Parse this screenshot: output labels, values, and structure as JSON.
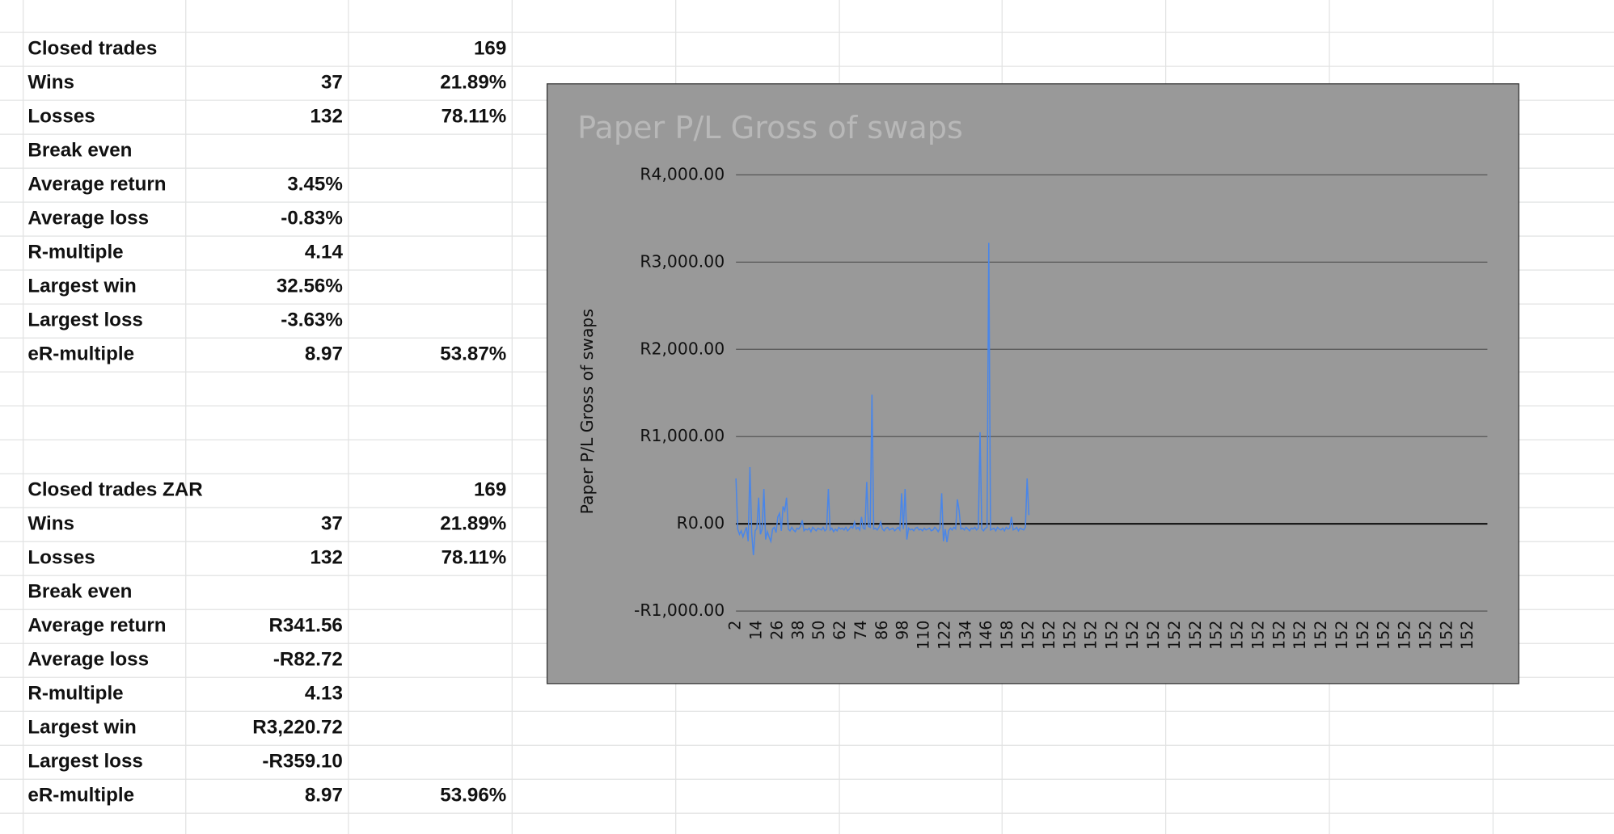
{
  "tables": [
    {
      "rows": [
        [
          "Closed trades",
          null,
          "169"
        ],
        [
          "Wins",
          "37",
          "21.89%"
        ],
        [
          "Losses",
          "132",
          "78.11%"
        ],
        [
          "Break even",
          null,
          null
        ],
        [
          "Average return",
          "3.45%",
          null
        ],
        [
          "Average loss",
          "-0.83%",
          null
        ],
        [
          "R-multiple",
          "4.14",
          null
        ],
        [
          "Largest win",
          "32.56%",
          null
        ],
        [
          "Largest loss",
          "-3.63%",
          null
        ],
        [
          "eR-multiple",
          "8.97",
          "53.87%"
        ]
      ]
    },
    {
      "rows": [
        [
          "Closed trades ZAR",
          null,
          "169"
        ],
        [
          "Wins",
          "37",
          "21.89%"
        ],
        [
          "Losses",
          "132",
          "78.11%"
        ],
        [
          "Break even",
          null,
          null
        ],
        [
          "Average return",
          "R341.56",
          null
        ],
        [
          "Average loss",
          "-R82.72",
          null
        ],
        [
          "R-multiple",
          "4.13",
          null
        ],
        [
          "Largest win",
          "R3,220.72",
          null
        ],
        [
          "Largest loss",
          "-R359.10",
          null
        ],
        [
          "eR-multiple",
          "8.97",
          "53.96%"
        ]
      ]
    }
  ],
  "chart_data": {
    "type": "line",
    "title": "Paper P/L Gross of swaps",
    "y_label": "Paper P/L Gross of swaps",
    "color": "#4a86e8",
    "grid": true,
    "ylim": [
      -1000,
      4000
    ],
    "yticks": [
      {
        "value": -1000,
        "label": "-R1,000.00"
      },
      {
        "value": 0,
        "label": "R0.00"
      },
      {
        "value": 1000,
        "label": "R1,000.00"
      },
      {
        "value": 2000,
        "label": "R2,000.00"
      },
      {
        "value": 3000,
        "label": "R3,000.00"
      },
      {
        "value": 4000,
        "label": "R4,000.00"
      }
    ],
    "categories": [
      "2",
      null,
      null,
      null,
      null,
      null,
      null,
      null,
      null,
      null,
      null,
      null,
      "14",
      null,
      null,
      null,
      null,
      null,
      null,
      null,
      null,
      null,
      null,
      null,
      "26",
      null,
      null,
      null,
      null,
      null,
      null,
      null,
      null,
      null,
      null,
      null,
      "38",
      null,
      null,
      null,
      null,
      null,
      null,
      null,
      null,
      null,
      null,
      null,
      "50",
      null,
      null,
      null,
      null,
      null,
      null,
      null,
      null,
      null,
      null,
      null,
      "62",
      null,
      null,
      null,
      null,
      null,
      null,
      null,
      null,
      null,
      null,
      null,
      "74",
      null,
      null,
      null,
      null,
      null,
      null,
      null,
      null,
      null,
      null,
      null,
      "86",
      null,
      null,
      null,
      null,
      null,
      null,
      null,
      null,
      null,
      null,
      null,
      "98",
      null,
      null,
      null,
      null,
      null,
      null,
      null,
      null,
      null,
      null,
      null,
      "110",
      null,
      null,
      null,
      null,
      null,
      null,
      null,
      null,
      null,
      null,
      null,
      "122",
      null,
      null,
      null,
      null,
      null,
      null,
      null,
      null,
      null,
      null,
      null,
      "134",
      null,
      null,
      null,
      null,
      null,
      null,
      null,
      null,
      null,
      null,
      null,
      "146",
      null,
      null,
      null,
      null,
      null,
      null,
      null,
      null,
      null,
      null,
      null,
      "158",
      null,
      null,
      null,
      null,
      null,
      null,
      null,
      null,
      null,
      null,
      null,
      "152",
      null,
      null,
      null,
      null,
      null,
      null,
      null,
      null,
      null,
      null,
      null,
      "152",
      null,
      null,
      null,
      null,
      null,
      null,
      null,
      null,
      null,
      null,
      null,
      "152",
      null,
      null,
      null,
      null,
      null,
      null,
      null,
      null,
      null,
      null,
      null,
      "152",
      null,
      null,
      null,
      null,
      null,
      null,
      null,
      null,
      null,
      null,
      null,
      "152",
      null,
      null,
      null,
      null,
      null,
      null,
      null,
      null,
      null,
      null,
      null,
      "152",
      null,
      null,
      null,
      null,
      null,
      null,
      null,
      null,
      null,
      null,
      null,
      "152",
      null,
      null,
      null,
      null,
      null,
      null,
      null,
      null,
      null,
      null,
      null,
      "152",
      null,
      null,
      null,
      null,
      null,
      null,
      null,
      null,
      null,
      null,
      null,
      "152",
      null,
      null,
      null,
      null,
      null,
      null,
      null,
      null,
      null,
      null,
      null,
      "152",
      null,
      null,
      null,
      null,
      null,
      null,
      null,
      null,
      null,
      null,
      null,
      "152",
      null,
      null,
      null,
      null,
      null,
      null,
      null,
      null,
      null,
      null,
      null,
      "152",
      null,
      null,
      null,
      null,
      null,
      null,
      null,
      null,
      null,
      null,
      null,
      "152",
      null,
      null,
      null,
      null,
      null,
      null,
      null,
      null,
      null,
      null,
      null,
      "152",
      null,
      null,
      null,
      null,
      null,
      null,
      null,
      null,
      null,
      null,
      null,
      "152",
      null,
      null,
      null,
      null,
      null,
      null,
      null,
      null,
      null,
      null,
      null,
      "152",
      null,
      null,
      null,
      null,
      null,
      null,
      null,
      null,
      null,
      null,
      null,
      "152",
      null,
      null,
      null,
      null,
      null,
      null,
      null,
      null,
      null,
      null,
      null,
      "152",
      null,
      null,
      null,
      null,
      null,
      null,
      null,
      null,
      null,
      null,
      null,
      "152",
      null,
      null,
      null,
      null,
      null,
      null,
      null,
      null,
      null,
      null,
      null,
      "152",
      null,
      null,
      null,
      null,
      null,
      null,
      null,
      null,
      null,
      null,
      null,
      "152",
      null,
      null,
      null,
      null,
      null,
      null,
      null,
      null,
      null,
      null,
      null,
      "152",
      null,
      null,
      null,
      null,
      null,
      null,
      null,
      null,
      null,
      null,
      null
    ],
    "values": [
      520,
      -60,
      -120,
      -80,
      -150,
      -90,
      -40,
      -200,
      650,
      -100,
      -359.1,
      -80,
      -50,
      300,
      -120,
      -60,
      400,
      -180,
      -90,
      -150,
      -200,
      -60,
      -40,
      -100,
      80,
      120,
      -80,
      200,
      150,
      300,
      -60,
      -80,
      -40,
      -70,
      -90,
      -50,
      -60,
      -30,
      40,
      -80,
      -60,
      -70,
      -50,
      -90,
      -40,
      -60,
      -80,
      -50,
      -60,
      -70,
      -40,
      -80,
      -60,
      400,
      -70,
      -50,
      -90,
      -60,
      -80,
      -40,
      -60,
      -50,
      -70,
      -40,
      -80,
      -60,
      -30,
      -50,
      20,
      -60,
      -40,
      -70,
      80,
      -50,
      -60,
      480,
      -30,
      -40,
      1480,
      -60,
      -50,
      -70,
      -40,
      20,
      -60,
      -80,
      -50,
      -40,
      -70,
      -60,
      -50,
      -80,
      -60,
      -40,
      -70,
      350,
      -60,
      400,
      -180,
      -50,
      -70,
      -60,
      -80,
      -50,
      -40,
      -70,
      -60,
      -80,
      -50,
      -70,
      -60,
      -50,
      -80,
      -70,
      -40,
      -60,
      -90,
      -50,
      350,
      -200,
      -60,
      -210,
      -80,
      -50,
      -70,
      -40,
      -60,
      280,
      150,
      -60,
      -50,
      -70,
      -40,
      -60,
      -80,
      -50,
      -60,
      -40,
      -70,
      -50,
      1050,
      -60,
      -80,
      -50,
      -40,
      3220.72,
      -70,
      -60,
      -50,
      -80,
      -40,
      -60,
      -70,
      -50,
      -80,
      -40,
      -60,
      -50,
      80,
      -70,
      -60,
      -40,
      -80,
      -50,
      -60,
      -70,
      -40,
      520,
      100,
      null,
      null,
      null,
      null,
      null,
      null,
      null,
      null,
      null,
      null,
      null,
      null,
      null,
      null,
      null,
      null,
      null,
      null,
      null,
      null,
      null,
      null,
      null,
      null,
      null,
      null,
      null,
      null,
      null,
      null,
      null,
      null,
      null,
      null,
      null,
      null,
      null,
      null,
      null,
      null,
      null,
      null,
      null,
      null,
      null,
      null,
      null,
      null,
      null,
      null,
      null,
      null,
      null,
      null,
      null,
      null,
      null,
      null,
      null,
      null,
      null,
      null,
      null,
      null,
      null,
      null,
      null,
      null,
      null,
      null,
      null,
      null,
      null,
      null,
      null,
      null,
      null,
      null,
      null,
      null,
      null,
      null,
      null,
      null,
      null,
      null,
      null,
      null,
      null,
      null,
      null,
      null,
      null,
      null,
      null,
      null,
      null,
      null,
      null,
      null,
      null,
      null,
      null,
      null,
      null,
      null,
      null,
      null,
      null,
      null,
      null,
      null,
      null,
      null,
      null,
      null,
      null,
      null,
      null,
      null,
      null,
      null,
      null,
      null,
      null,
      null,
      null,
      null,
      null,
      null,
      null,
      null,
      null,
      null,
      null,
      null,
      null,
      null,
      null,
      null,
      null,
      null,
      null,
      null,
      null,
      null,
      null,
      null,
      null,
      null,
      null,
      null,
      null,
      null,
      null,
      null,
      null,
      null,
      null,
      null,
      null,
      null,
      null,
      null,
      null,
      null,
      null,
      null,
      null,
      null,
      null,
      null,
      null,
      null,
      null,
      null,
      null,
      null,
      null,
      null,
      null,
      null,
      null,
      null,
      null,
      null,
      null,
      null,
      null,
      null,
      null,
      null,
      null,
      null,
      null,
      null,
      null,
      null,
      null,
      null,
      null,
      null,
      null,
      null,
      null,
      null,
      null,
      null,
      null,
      null,
      null,
      null,
      null,
      null,
      null,
      null,
      null,
      null,
      null,
      null,
      null,
      null,
      null,
      null,
      null,
      null,
      null,
      null,
      null,
      null,
      null,
      null,
      null,
      null,
      null,
      null,
      null,
      null,
      null,
      null,
      null,
      null,
      null,
      null,
      null,
      null,
      null,
      null,
      null,
      null,
      null,
      null,
      null,
      null,
      null,
      null,
      null,
      null,
      null,
      null,
      null,
      null,
      null
    ]
  }
}
